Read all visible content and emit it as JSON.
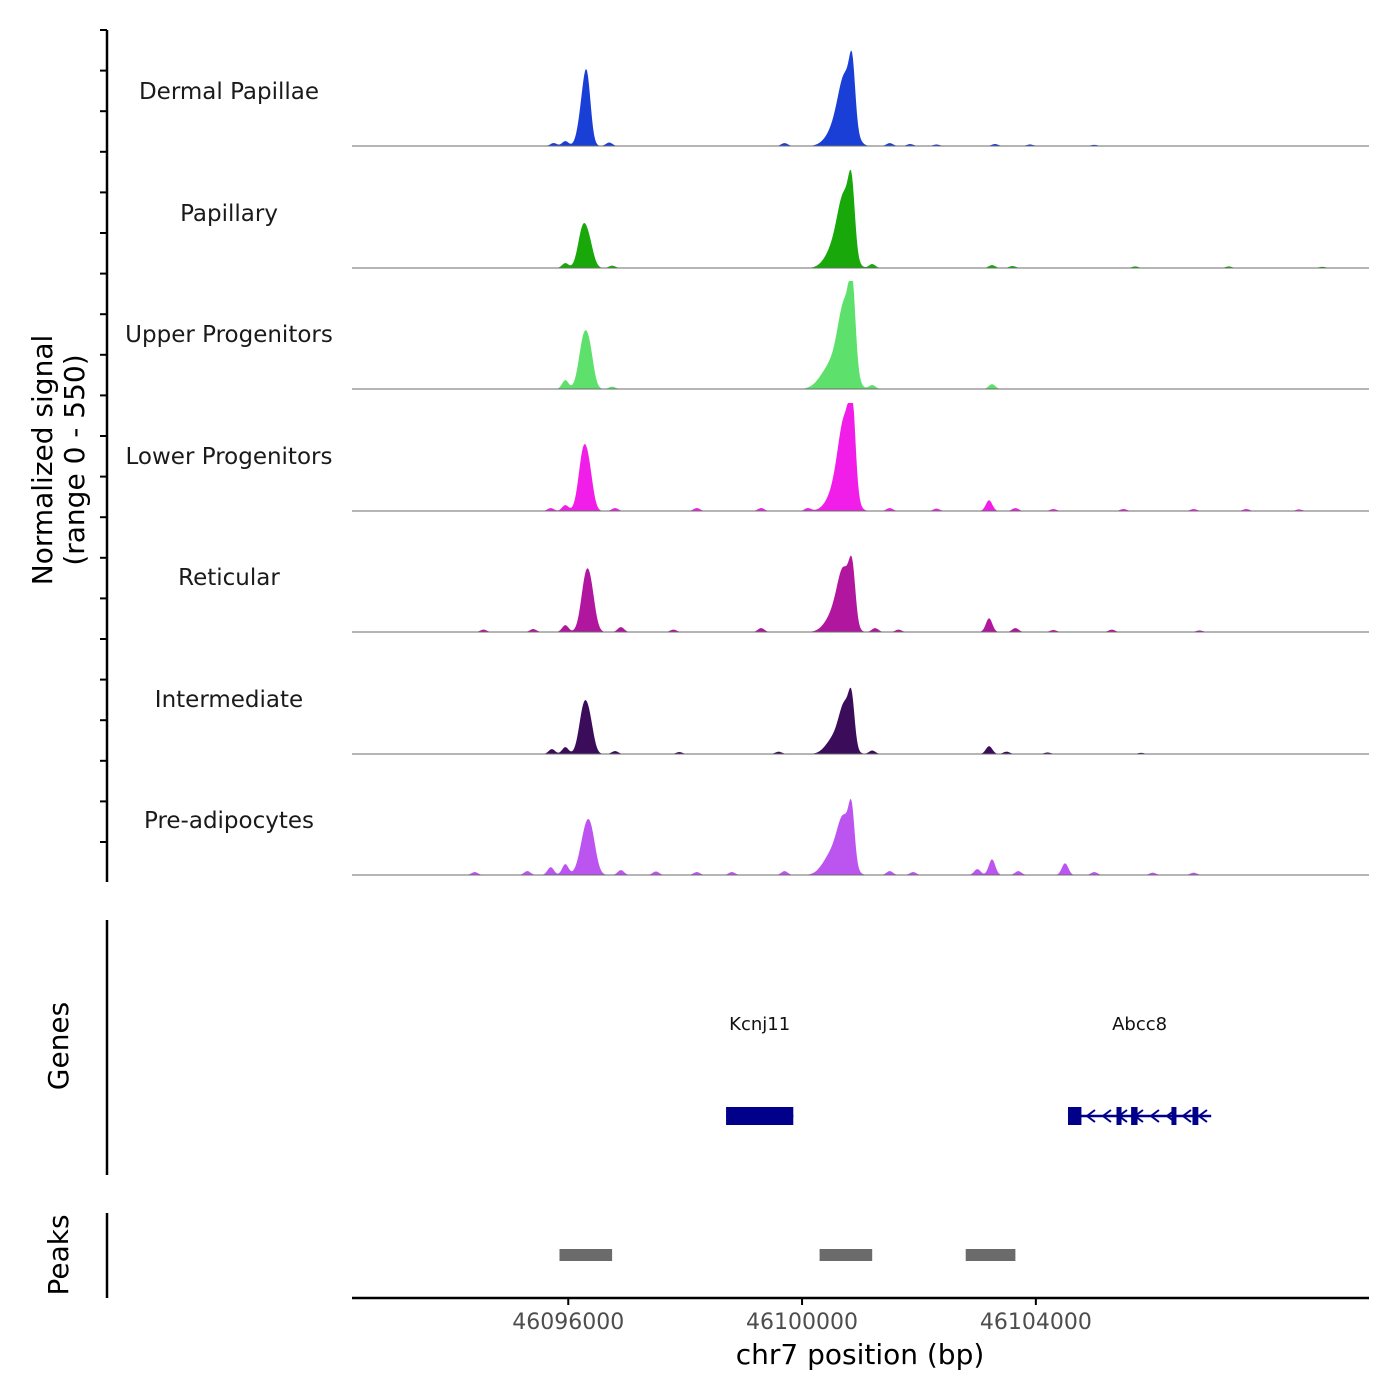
{
  "chart_data": {
    "type": "area",
    "title": "",
    "xlabel": "chr7 position (bp)",
    "xlim": [
      46092300,
      46109700
    ],
    "x_ticks": [
      46096000,
      46100000,
      46104000
    ],
    "x_tick_labels": [
      "46096000",
      "46100000",
      "46104000"
    ],
    "coverage_ylabel_line1": "Normalized signal",
    "coverage_ylabel_line2": "(range 0 - 550)",
    "ylim": [
      0,
      550
    ],
    "series": [
      {
        "name": "Dermal Papillae",
        "color": "#1a3fd6",
        "peaks": [
          {
            "center": 46096270,
            "width": 180,
            "height": 250
          },
          {
            "center": 46096330,
            "width": 130,
            "height": 180
          },
          {
            "center": 46100750,
            "width": 260,
            "height": 300
          },
          {
            "center": 46100860,
            "width": 110,
            "height": 250
          },
          {
            "center": 46100600,
            "width": 350,
            "height": 100
          }
        ],
        "noise": [
          [
            46095950,
            25
          ],
          [
            46095750,
            15
          ],
          [
            46096700,
            18
          ],
          [
            46099700,
            15
          ],
          [
            46101500,
            15
          ],
          [
            46101850,
            10
          ],
          [
            46102300,
            8
          ],
          [
            46103300,
            10
          ],
          [
            46103900,
            8
          ],
          [
            46105000,
            6
          ]
        ]
      },
      {
        "name": "Papillary",
        "color": "#18a80a",
        "peaks": [
          {
            "center": 46096250,
            "width": 180,
            "height": 200
          },
          {
            "center": 46096370,
            "width": 160,
            "height": 90
          },
          {
            "center": 46100730,
            "width": 250,
            "height": 330
          },
          {
            "center": 46100850,
            "width": 120,
            "height": 280
          },
          {
            "center": 46100550,
            "width": 320,
            "height": 100
          }
        ],
        "noise": [
          [
            46095950,
            25
          ],
          [
            46096750,
            12
          ],
          [
            46101200,
            20
          ],
          [
            46103250,
            15
          ],
          [
            46103600,
            10
          ],
          [
            46105700,
            8
          ],
          [
            46107300,
            8
          ],
          [
            46108900,
            6
          ]
        ]
      },
      {
        "name": "Upper Progenitors",
        "color": "#5ee06c",
        "peaks": [
          {
            "center": 46096270,
            "width": 190,
            "height": 260
          },
          {
            "center": 46096380,
            "width": 150,
            "height": 110
          },
          {
            "center": 46100740,
            "width": 260,
            "height": 400
          },
          {
            "center": 46100860,
            "width": 120,
            "height": 340
          },
          {
            "center": 46100500,
            "width": 380,
            "height": 120
          }
        ],
        "noise": [
          [
            46095950,
            45
          ],
          [
            46096750,
            12
          ],
          [
            46101200,
            20
          ],
          [
            46103250,
            25
          ]
        ]
      },
      {
        "name": "Lower Progenitors",
        "color": "#f01ee8",
        "peaks": [
          {
            "center": 46096260,
            "width": 180,
            "height": 300
          },
          {
            "center": 46096370,
            "width": 150,
            "height": 120
          },
          {
            "center": 46100740,
            "width": 250,
            "height": 420
          },
          {
            "center": 46100860,
            "width": 120,
            "height": 360
          },
          {
            "center": 46100580,
            "width": 320,
            "height": 100
          }
        ],
        "noise": [
          [
            46095950,
            30
          ],
          [
            46095700,
            15
          ],
          [
            46096800,
            15
          ],
          [
            46098200,
            15
          ],
          [
            46099300,
            15
          ],
          [
            46100100,
            15
          ],
          [
            46101500,
            15
          ],
          [
            46102300,
            12
          ],
          [
            46103200,
            55
          ],
          [
            46103650,
            15
          ],
          [
            46104300,
            10
          ],
          [
            46105500,
            10
          ],
          [
            46106700,
            10
          ],
          [
            46107600,
            10
          ],
          [
            46108500,
            8
          ]
        ]
      },
      {
        "name": "Reticular",
        "color": "#b0169e",
        "peaks": [
          {
            "center": 46096300,
            "width": 180,
            "height": 260
          },
          {
            "center": 46096400,
            "width": 160,
            "height": 130
          },
          {
            "center": 46100720,
            "width": 240,
            "height": 280
          },
          {
            "center": 46100860,
            "width": 120,
            "height": 240
          },
          {
            "center": 46100550,
            "width": 320,
            "height": 90
          }
        ],
        "noise": [
          [
            46095950,
            35
          ],
          [
            46096900,
            25
          ],
          [
            46094550,
            12
          ],
          [
            46095400,
            15
          ],
          [
            46097800,
            12
          ],
          [
            46099300,
            20
          ],
          [
            46101250,
            20
          ],
          [
            46101650,
            12
          ],
          [
            46103200,
            70
          ],
          [
            46103650,
            20
          ],
          [
            46104300,
            10
          ],
          [
            46105300,
            12
          ],
          [
            46106800,
            8
          ]
        ]
      },
      {
        "name": "Intermediate",
        "color": "#3a0c59",
        "peaks": [
          {
            "center": 46096270,
            "width": 180,
            "height": 240
          },
          {
            "center": 46096380,
            "width": 150,
            "height": 100
          },
          {
            "center": 46100740,
            "width": 220,
            "height": 230
          },
          {
            "center": 46100850,
            "width": 110,
            "height": 190
          },
          {
            "center": 46100550,
            "width": 300,
            "height": 80
          }
        ],
        "noise": [
          [
            46095950,
            35
          ],
          [
            46095720,
            25
          ],
          [
            46096800,
            15
          ],
          [
            46097900,
            10
          ],
          [
            46099600,
            12
          ],
          [
            46101200,
            18
          ],
          [
            46103200,
            40
          ],
          [
            46103500,
            12
          ],
          [
            46104200,
            8
          ],
          [
            46105800,
            6
          ]
        ]
      },
      {
        "name": "Pre-adipocytes",
        "color": "#bc55f0",
        "peaks": [
          {
            "center": 46096300,
            "width": 220,
            "height": 210
          },
          {
            "center": 46096400,
            "width": 180,
            "height": 120
          },
          {
            "center": 46100720,
            "width": 250,
            "height": 270
          },
          {
            "center": 46100850,
            "width": 110,
            "height": 230
          },
          {
            "center": 46100500,
            "width": 320,
            "height": 100
          }
        ],
        "noise": [
          [
            46094400,
            15
          ],
          [
            46095300,
            20
          ],
          [
            46095950,
            55
          ],
          [
            46095700,
            40
          ],
          [
            46096900,
            25
          ],
          [
            46097500,
            18
          ],
          [
            46098200,
            15
          ],
          [
            46098800,
            15
          ],
          [
            46099700,
            20
          ],
          [
            46101500,
            20
          ],
          [
            46101900,
            15
          ],
          [
            46103000,
            30
          ],
          [
            46103250,
            80
          ],
          [
            46103700,
            20
          ],
          [
            46104500,
            60
          ],
          [
            46105000,
            15
          ],
          [
            46106000,
            12
          ],
          [
            46106700,
            12
          ]
        ]
      }
    ],
    "genes_label": "Genes",
    "genes": [
      {
        "name": "Kcnj11",
        "start": 46098700,
        "end": 46099850,
        "strand": "-",
        "exons": [
          [
            46098700,
            46099850
          ]
        ]
      },
      {
        "name": "Abcc8",
        "start": 46104550,
        "end": 46107000,
        "strand": "-",
        "exons": [
          [
            46104550,
            46104780
          ],
          [
            46105380,
            46105420
          ],
          [
            46105630,
            46105740
          ],
          [
            46106320,
            46106380
          ],
          [
            46106680,
            46106780
          ]
        ]
      }
    ],
    "peaks_label": "Peaks",
    "peak_regions": [
      [
        46095850,
        46096750
      ],
      [
        46100300,
        46101200
      ],
      [
        46102800,
        46103650
      ]
    ]
  }
}
